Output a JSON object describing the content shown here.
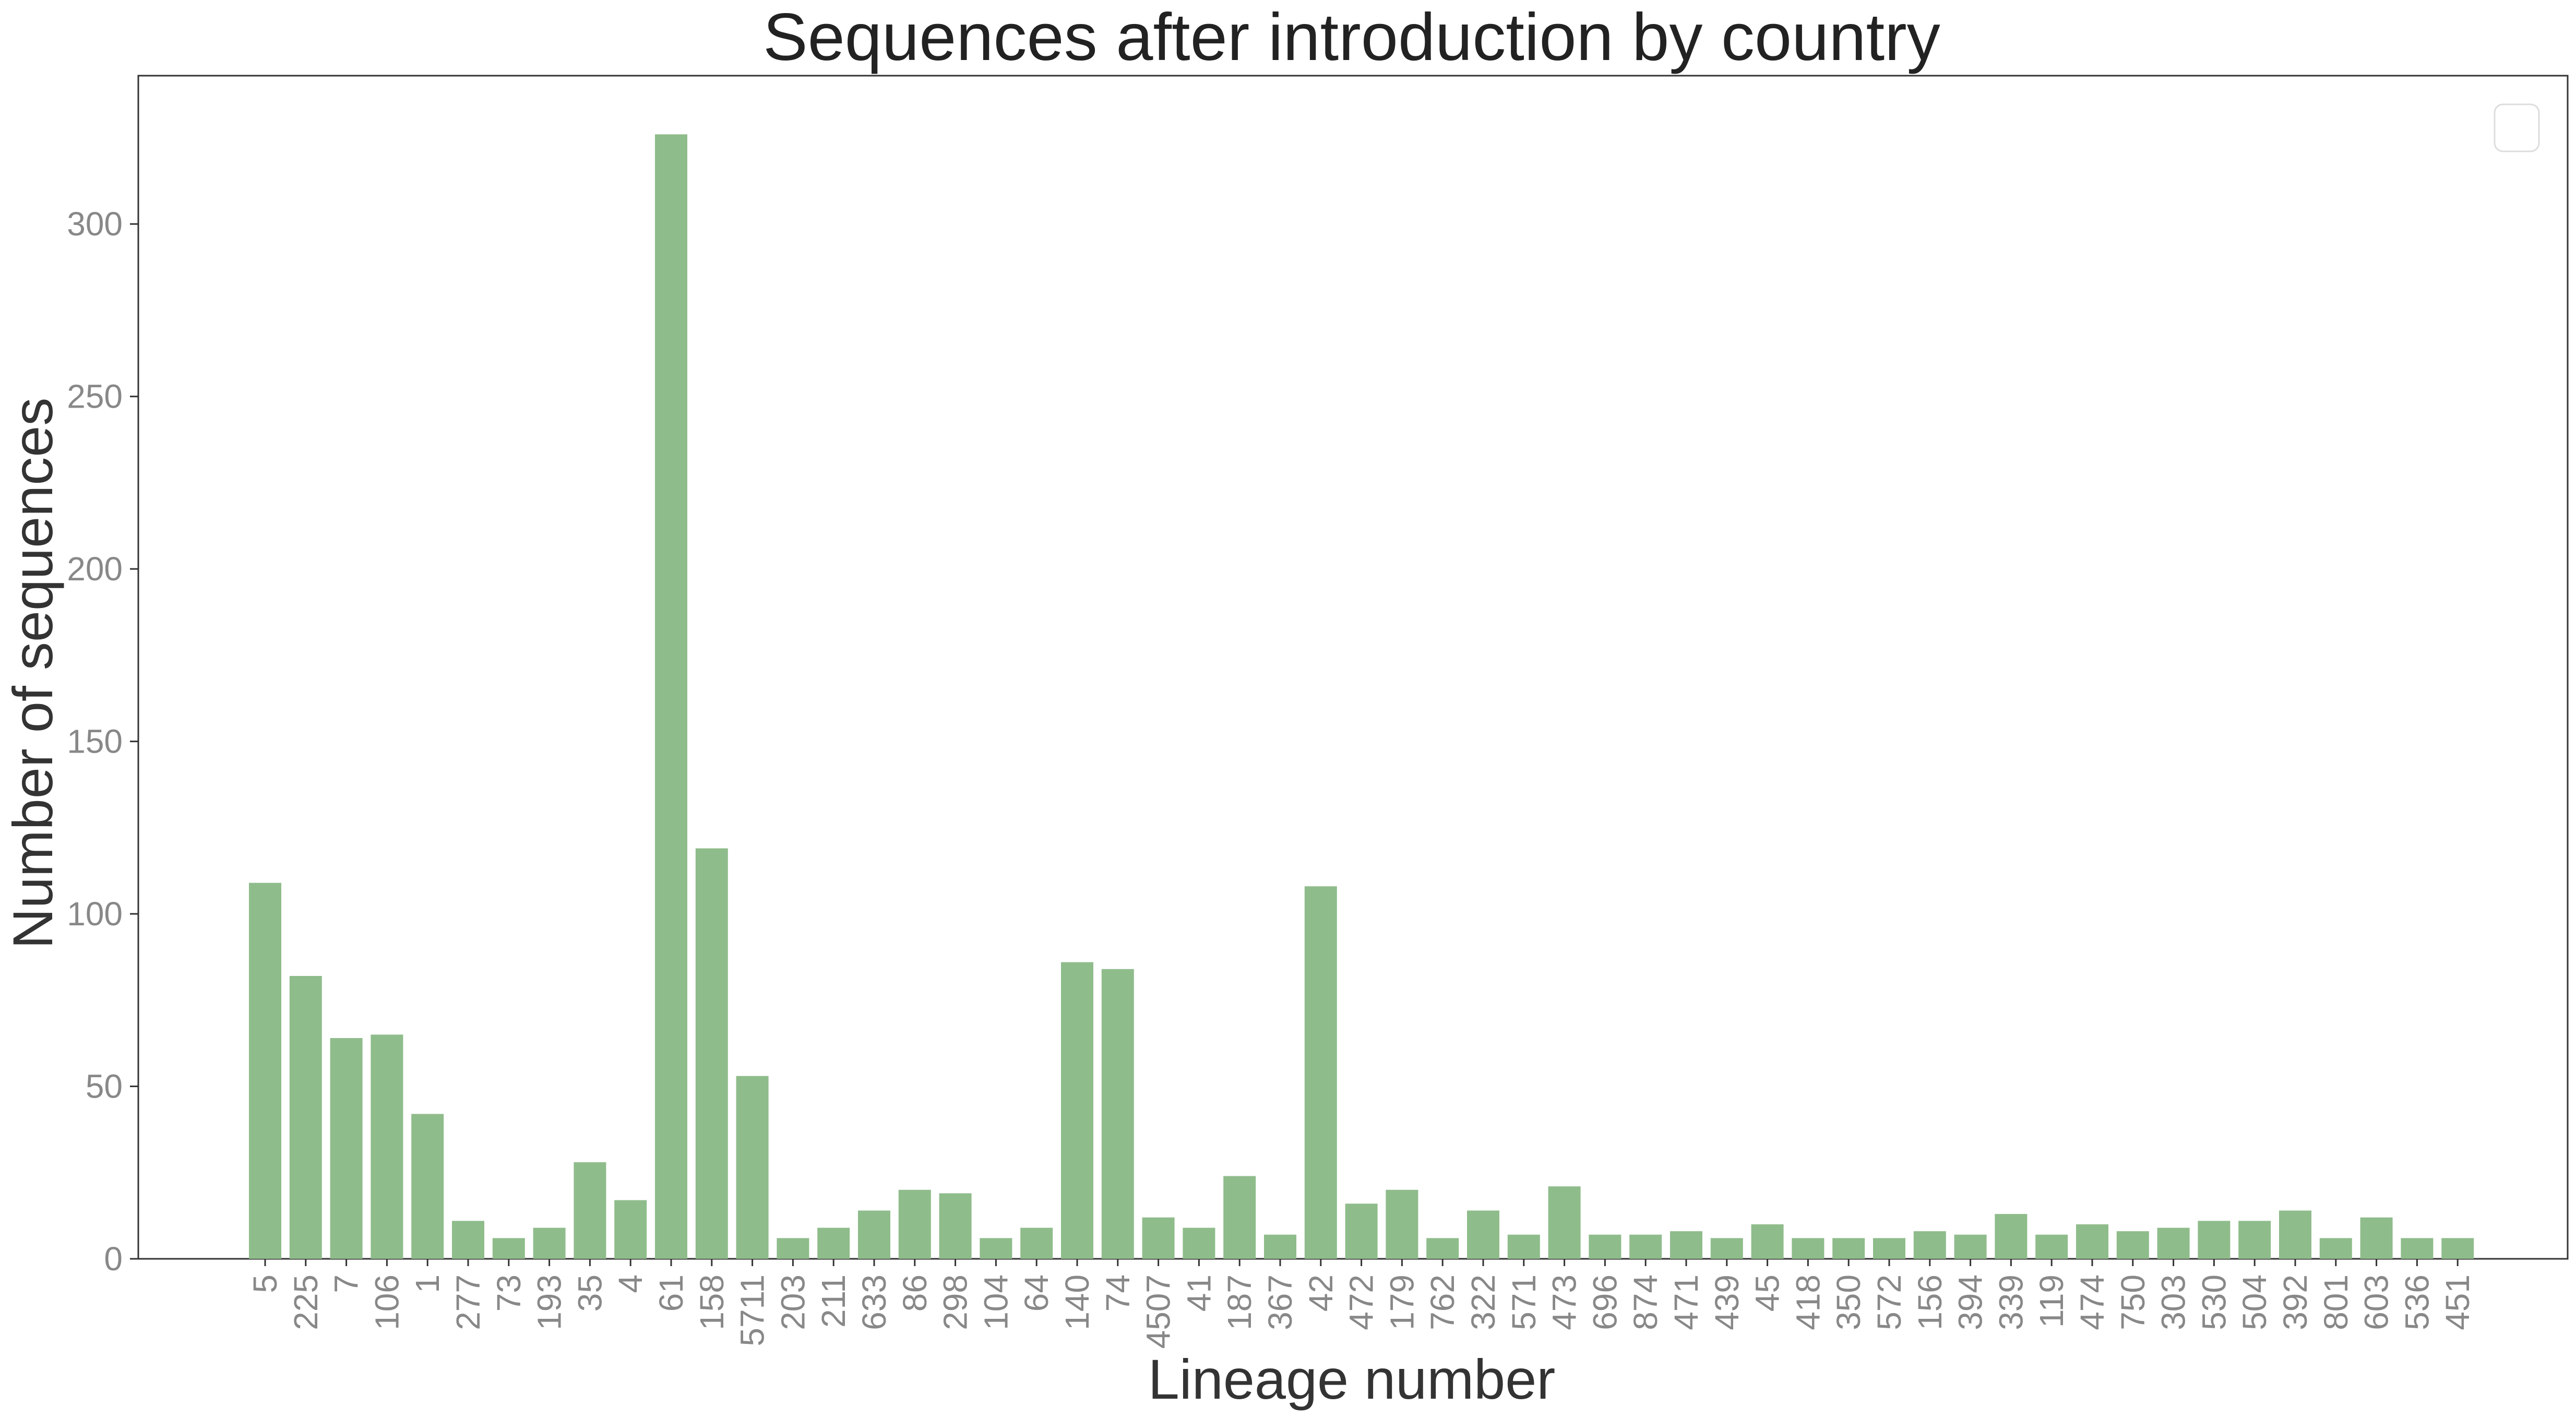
{
  "chart_data": {
    "type": "bar",
    "title": "Sequences after introduction by country",
    "xlabel": "Lineage number",
    "ylabel": "Number of sequences",
    "ylim": [
      0,
      343
    ],
    "yticks": [
      0,
      50,
      100,
      150,
      200,
      250,
      300
    ],
    "grid": false,
    "legend": {
      "placement": "top-right",
      "entries": []
    },
    "bar_color": "#8fbc8b",
    "categories": [
      "5",
      "225",
      "7",
      "106",
      "1",
      "277",
      "73",
      "193",
      "35",
      "4",
      "61",
      "158",
      "5711",
      "203",
      "211",
      "633",
      "86",
      "298",
      "104",
      "64",
      "140",
      "74",
      "4507",
      "41",
      "187",
      "367",
      "42",
      "472",
      "179",
      "762",
      "322",
      "571",
      "473",
      "696",
      "874",
      "471",
      "439",
      "45",
      "418",
      "350",
      "572",
      "156",
      "394",
      "339",
      "119",
      "474",
      "750",
      "303",
      "530",
      "504",
      "392",
      "801",
      "603",
      "536",
      "451"
    ],
    "values": [
      109,
      82,
      64,
      65,
      42,
      11,
      6,
      9,
      28,
      17,
      326,
      119,
      53,
      6,
      9,
      14,
      20,
      19,
      6,
      9,
      86,
      84,
      12,
      9,
      24,
      7,
      108,
      16,
      20,
      6,
      14,
      7,
      21,
      7,
      7,
      8,
      6,
      10,
      6,
      6,
      6,
      8,
      7,
      13,
      7,
      10,
      8,
      9,
      11,
      11,
      14,
      6,
      12,
      6,
      6
    ]
  }
}
